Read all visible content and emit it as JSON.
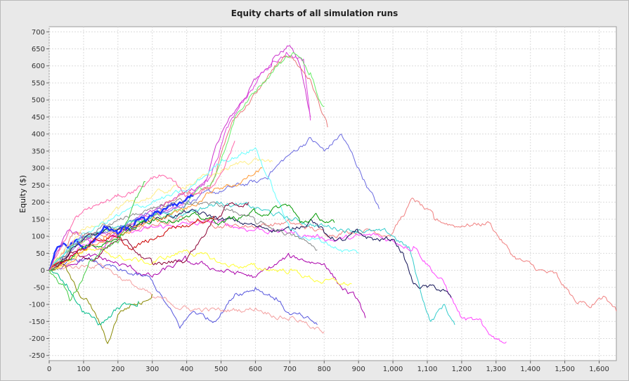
{
  "chart_data": {
    "type": "line",
    "title": "Equity charts of all simulation runs",
    "xlabel": "",
    "ylabel": "Equity ($)",
    "xlim": [
      0,
      1650
    ],
    "ylim": [
      -265,
      715
    ],
    "x_ticks": [
      0,
      100,
      200,
      300,
      400,
      500,
      600,
      700,
      800,
      900,
      1000,
      1100,
      1200,
      1300,
      1400,
      1500,
      1600
    ],
    "x_tick_labels": [
      "0",
      "100",
      "200",
      "300",
      "400",
      "500",
      "600",
      "700",
      "800",
      "900",
      "1,000",
      "1,100",
      "1,200",
      "1,300",
      "1,400",
      "1,500",
      "1,600"
    ],
    "y_ticks": [
      -250,
      -200,
      -150,
      -100,
      -50,
      0,
      50,
      100,
      150,
      200,
      250,
      300,
      350,
      400,
      450,
      500,
      550,
      600,
      650,
      700
    ],
    "y_tick_labels": [
      "-250",
      "-200",
      "-150",
      "-100",
      "-50",
      "0",
      "50",
      "100",
      "150",
      "200",
      "250",
      "300",
      "350",
      "400",
      "450",
      "500",
      "550",
      "600",
      "650",
      "700"
    ],
    "grid": true,
    "legend": "none",
    "series": [
      {
        "color": "#cc33cc",
        "x": [
          0,
          60,
          150,
          250,
          350,
          450,
          500,
          550,
          600,
          650,
          700,
          730,
          760
        ],
        "y": [
          0,
          120,
          60,
          150,
          200,
          250,
          400,
          480,
          560,
          620,
          660,
          600,
          450
        ]
      },
      {
        "color": "#dd44dd",
        "x": [
          0,
          80,
          180,
          280,
          380,
          460,
          520,
          580,
          640,
          690,
          740,
          760
        ],
        "y": [
          0,
          90,
          100,
          160,
          190,
          260,
          420,
          520,
          600,
          640,
          620,
          440
        ]
      },
      {
        "color": "#e87878",
        "x": [
          0,
          70,
          170,
          270,
          370,
          470,
          530,
          600,
          660,
          700,
          760,
          810
        ],
        "y": [
          0,
          110,
          80,
          140,
          210,
          250,
          430,
          520,
          600,
          630,
          560,
          420
        ]
      },
      {
        "color": "#66ee66",
        "x": [
          0,
          90,
          190,
          290,
          390,
          480,
          540,
          610,
          670,
          710,
          760,
          800
        ],
        "y": [
          0,
          80,
          120,
          150,
          180,
          270,
          450,
          540,
          610,
          640,
          580,
          480
        ]
      },
      {
        "color": "#6a6ae0",
        "x": [
          0,
          100,
          200,
          300,
          400,
          500,
          600,
          640,
          700,
          760,
          800,
          850,
          900,
          960
        ],
        "y": [
          0,
          100,
          120,
          170,
          200,
          230,
          260,
          280,
          340,
          390,
          350,
          400,
          300,
          180
        ]
      },
      {
        "color": "#f08080",
        "x": [
          0,
          100,
          250,
          400,
          550,
          700,
          800,
          900,
          1000,
          1060,
          1120,
          1200,
          1280,
          1350,
          1420,
          1480,
          1530,
          1580,
          1620,
          1650
        ],
        "y": [
          0,
          100,
          120,
          150,
          130,
          140,
          110,
          120,
          110,
          210,
          150,
          130,
          140,
          40,
          0,
          -20,
          -90,
          -100,
          -80,
          -120
        ]
      },
      {
        "color": "#33cccc",
        "x": [
          0,
          100,
          200,
          300,
          400,
          500,
          600,
          700,
          800,
          900,
          1000,
          1050,
          1080,
          1110,
          1150,
          1180
        ],
        "y": [
          0,
          100,
          130,
          160,
          170,
          200,
          180,
          150,
          130,
          120,
          100,
          60,
          -60,
          -150,
          -100,
          -160
        ]
      },
      {
        "color": "#ff44ff",
        "x": [
          0,
          120,
          240,
          360,
          480,
          600,
          720,
          840,
          960,
          1060,
          1150,
          1200,
          1260,
          1300,
          1330
        ],
        "y": [
          0,
          90,
          110,
          130,
          140,
          120,
          110,
          90,
          100,
          70,
          -40,
          -140,
          -160,
          -200,
          -210
        ]
      },
      {
        "color": "#111155",
        "x": [
          0,
          100,
          200,
          300,
          400,
          500,
          600,
          700,
          760,
          800,
          850,
          900,
          950,
          1000,
          1030,
          1060,
          1100,
          1150,
          1170
        ],
        "y": [
          0,
          90,
          120,
          150,
          170,
          150,
          130,
          120,
          150,
          110,
          90,
          110,
          90,
          90,
          50,
          -40,
          -50,
          -60,
          -80
        ]
      },
      {
        "color": "#2233ff",
        "x": [
          0,
          20,
          40,
          60,
          80,
          100,
          120,
          140,
          160,
          180,
          200,
          220,
          240,
          260,
          280,
          300,
          320,
          340,
          360,
          380,
          400,
          420
        ],
        "y": [
          0,
          60,
          80,
          70,
          90,
          60,
          80,
          100,
          130,
          120,
          100,
          130,
          120,
          150,
          140,
          160,
          170,
          180,
          190,
          200,
          210,
          220
        ]
      },
      {
        "color": "#aa00aa",
        "x": [
          0,
          100,
          200,
          300,
          400,
          500,
          600,
          700,
          800,
          850,
          900,
          920
        ],
        "y": [
          0,
          40,
          20,
          -20,
          30,
          0,
          -20,
          40,
          20,
          -50,
          -90,
          -140
        ]
      },
      {
        "color": "#5555dd",
        "x": [
          0,
          100,
          200,
          300,
          380,
          420,
          480,
          540,
          600,
          660,
          700,
          740,
          780
        ],
        "y": [
          0,
          30,
          0,
          -30,
          -170,
          -120,
          -150,
          -70,
          -50,
          -80,
          -130,
          -140,
          -160
        ]
      },
      {
        "color": "#f4a0a0",
        "x": [
          0,
          150,
          300,
          400,
          500,
          600,
          700,
          740,
          760,
          800
        ],
        "y": [
          0,
          20,
          -80,
          -110,
          -120,
          -110,
          -140,
          -150,
          -170,
          -180
        ]
      },
      {
        "color": "#888800",
        "x": [
          0,
          40,
          80,
          120,
          150,
          170,
          200,
          240,
          280,
          300
        ],
        "y": [
          0,
          20,
          -60,
          -100,
          -160,
          -215,
          -130,
          -100,
          -90,
          -70
        ]
      },
      {
        "color": "#ffff33",
        "x": [
          0,
          100,
          200,
          300,
          400,
          500,
          600,
          700,
          780,
          850,
          880
        ],
        "y": [
          0,
          60,
          40,
          20,
          60,
          20,
          10,
          0,
          -30,
          -40,
          -40
        ]
      },
      {
        "color": "#ffee88",
        "x": [
          0,
          100,
          200,
          300,
          400,
          500,
          600,
          650
        ],
        "y": [
          0,
          120,
          180,
          220,
          250,
          290,
          330,
          320
        ]
      },
      {
        "color": "#66ffff",
        "x": [
          0,
          100,
          200,
          300,
          400,
          500,
          600,
          700,
          800,
          860,
          900
        ],
        "y": [
          0,
          110,
          160,
          200,
          230,
          320,
          360,
          120,
          80,
          60,
          50
        ]
      },
      {
        "color": "#009900",
        "x": [
          0,
          100,
          200,
          300,
          400,
          500,
          600,
          700,
          730,
          780,
          830
        ],
        "y": [
          0,
          70,
          100,
          150,
          160,
          140,
          170,
          190,
          140,
          160,
          140
        ]
      },
      {
        "color": "#cc0000",
        "x": [
          0,
          60,
          120,
          180,
          240,
          300,
          360,
          420,
          480
        ],
        "y": [
          0,
          40,
          80,
          100,
          60,
          90,
          130,
          140,
          160
        ]
      },
      {
        "color": "#8b0033",
        "x": [
          0,
          60,
          120,
          200,
          300,
          400,
          460,
          520,
          580
        ],
        "y": [
          0,
          50,
          30,
          90,
          20,
          30,
          120,
          190,
          200
        ]
      },
      {
        "color": "#ff9933",
        "x": [
          0,
          80,
          160,
          240,
          320,
          400,
          480,
          560,
          620
        ],
        "y": [
          0,
          40,
          100,
          120,
          150,
          180,
          240,
          260,
          300
        ]
      },
      {
        "color": "#888888",
        "x": [
          0,
          100,
          200,
          300,
          400,
          500,
          600,
          700,
          780
        ],
        "y": [
          0,
          100,
          150,
          180,
          200,
          190,
          140,
          110,
          60
        ]
      },
      {
        "color": "#00bb88",
        "x": [
          0,
          50,
          100,
          150,
          200,
          260
        ],
        "y": [
          0,
          -40,
          -120,
          -160,
          -110,
          -90
        ]
      },
      {
        "color": "#ff66aa",
        "x": [
          0,
          80,
          160,
          240,
          320,
          400,
          480,
          540
        ],
        "y": [
          0,
          160,
          200,
          230,
          280,
          220,
          250,
          380
        ]
      },
      {
        "color": "#44cc44",
        "x": [
          0,
          40,
          60,
          80,
          120,
          200,
          280
        ],
        "y": [
          0,
          -40,
          -90,
          -60,
          30,
          80,
          260
        ]
      }
    ]
  }
}
